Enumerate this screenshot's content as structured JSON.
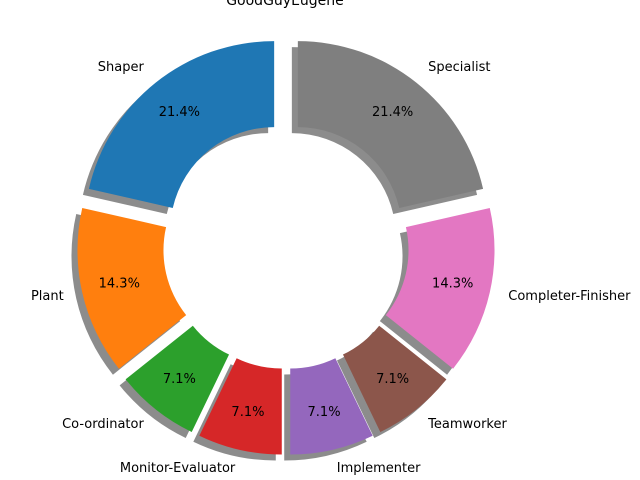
{
  "chart_data": {
    "type": "pie",
    "title": "GoodGuyEugene",
    "donut": true,
    "shadow": true,
    "start_angle_deg": 90,
    "direction": "counterclockwise",
    "slices": [
      {
        "label": "Shaper",
        "value": 3,
        "pct_label": "21.4%",
        "color": "#1f77b4",
        "explode": 0.2
      },
      {
        "label": "Plant",
        "value": 2,
        "pct_label": "14.3%",
        "color": "#ff7f0e",
        "explode": 0.2
      },
      {
        "label": "Co-ordinator",
        "value": 1,
        "pct_label": "7.1%",
        "color": "#2ca02c",
        "explode": 0.2
      },
      {
        "label": "Monitor-Evaluator",
        "value": 1,
        "pct_label": "7.1%",
        "color": "#d62728",
        "explode": 0.2
      },
      {
        "label": "Implementer",
        "value": 1,
        "pct_label": "7.1%",
        "color": "#9467bd",
        "explode": 0.2
      },
      {
        "label": "Teamworker",
        "value": 1,
        "pct_label": "7.1%",
        "color": "#8c564b",
        "explode": 0.2
      },
      {
        "label": "Completer-Finisher",
        "value": 2,
        "pct_label": "14.3%",
        "color": "#e377c2",
        "explode": 0.2
      },
      {
        "label": "Specialist",
        "value": 3,
        "pct_label": "21.4%",
        "color": "#7f7f7f",
        "explode": 0.2
      }
    ]
  }
}
